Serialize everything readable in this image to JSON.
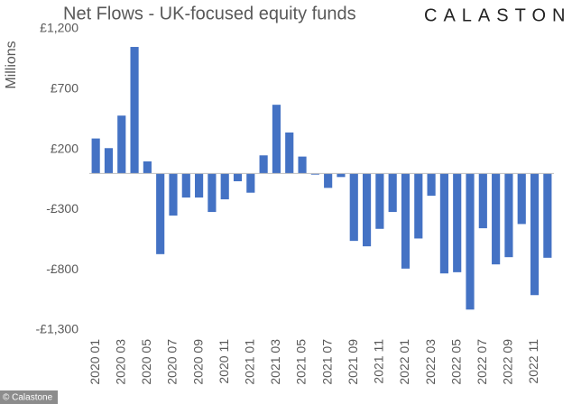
{
  "chart_data": {
    "type": "bar",
    "title": "Net Flows - UK-focused equity funds",
    "logo": "CALASTONE",
    "credit": "© Calastone",
    "y_label": "Millions",
    "categories": [
      "2020 01",
      null,
      "2020 03",
      null,
      "2020 05",
      null,
      "2020 07",
      null,
      "2020 09",
      null,
      "2020 11",
      null,
      "2021 01",
      null,
      "2021 03",
      null,
      "2021 05",
      null,
      "2021 07",
      null,
      "2021 09",
      null,
      "2021 11",
      null,
      "2022 01",
      null,
      "2022 03",
      null,
      "2022 05",
      null,
      "2022 07",
      null,
      "2022 09",
      null,
      "2022 11",
      null
    ],
    "values": [
      290,
      210,
      480,
      1050,
      100,
      -670,
      -350,
      -200,
      -200,
      -320,
      -215,
      -65,
      -160,
      150,
      570,
      340,
      140,
      -10,
      -120,
      -30,
      -560,
      -605,
      -460,
      -320,
      -790,
      -540,
      -185,
      -830,
      -820,
      -1130,
      -455,
      -755,
      -695,
      -420,
      -1010,
      -700
    ],
    "color": "#4472c4",
    "ylim": [
      -1300,
      1200
    ],
    "yticks": [
      {
        "value": 1200,
        "label": "£1,200"
      },
      {
        "value": 700,
        "label": "£700"
      },
      {
        "value": 200,
        "label": "£200"
      },
      {
        "value": -300,
        "label": "-£300"
      },
      {
        "value": -800,
        "label": "-£800"
      },
      {
        "value": -1300,
        "label": "-£1,300"
      }
    ],
    "grid": false
  }
}
